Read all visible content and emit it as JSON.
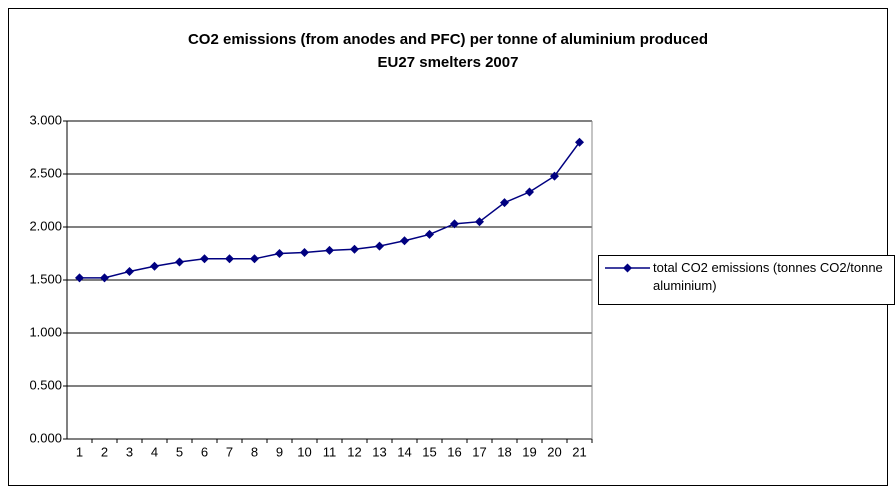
{
  "chart_data": {
    "type": "line",
    "title": "CO2 emissions (from anodes and PFC) per tonne of aluminium produced",
    "subtitle": "EU27 smelters 2007",
    "categories": [
      "1",
      "2",
      "3",
      "4",
      "5",
      "6",
      "7",
      "8",
      "9",
      "10",
      "11",
      "12",
      "13",
      "14",
      "15",
      "16",
      "17",
      "18",
      "19",
      "20",
      "21"
    ],
    "series": [
      {
        "name": "total CO2 emissions (tonnes CO2/tonne aluminium)",
        "color": "#000080",
        "values": [
          1.52,
          1.52,
          1.58,
          1.63,
          1.67,
          1.7,
          1.7,
          1.7,
          1.75,
          1.76,
          1.78,
          1.79,
          1.82,
          1.87,
          1.93,
          2.03,
          2.05,
          2.23,
          2.33,
          2.48,
          2.8
        ]
      }
    ],
    "ylim": [
      0,
      3
    ],
    "yticks": [
      {
        "value": 0,
        "label": "0.000"
      },
      {
        "value": 0.5,
        "label": "0.500"
      },
      {
        "value": 1,
        "label": "1.000"
      },
      {
        "value": 1.5,
        "label": "1.500"
      },
      {
        "value": 2,
        "label": "2.000"
      },
      {
        "value": 2.5,
        "label": "2.500"
      },
      {
        "value": 3,
        "label": "3.000"
      }
    ],
    "grid": true,
    "legend": "right"
  }
}
